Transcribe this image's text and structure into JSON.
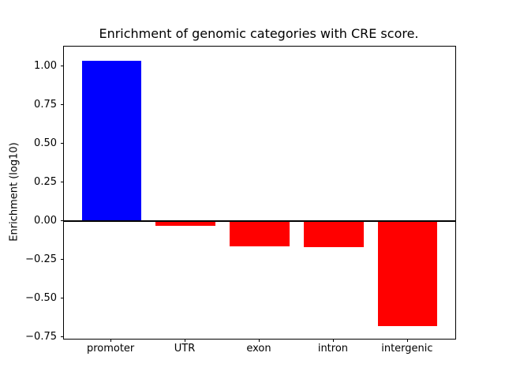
{
  "chart_data": {
    "type": "bar",
    "title": "Enrichment of genomic categories with CRE score.",
    "ylabel": "Enrichment (log10)",
    "xlabel": "",
    "categories": [
      "promoter",
      "UTR",
      "exon",
      "intron",
      "intergenic"
    ],
    "values": [
      1.04,
      -0.03,
      -0.16,
      -0.17,
      -0.68
    ],
    "bar_colors": [
      "#0000ff",
      "#ff0000",
      "#ff0000",
      "#ff0000",
      "#ff0000"
    ],
    "positive_color": "#0000ff",
    "negative_color": "#ff0000",
    "ylim": [
      -0.76,
      1.13
    ],
    "yticks": [
      1.0,
      0.75,
      0.5,
      0.25,
      0.0,
      -0.25,
      -0.5,
      -0.75
    ],
    "bar_width_fraction": 0.8,
    "grid": false,
    "zero_line": true,
    "legend": "none",
    "background_color": "#ffffff",
    "spine_color": "#000000"
  }
}
